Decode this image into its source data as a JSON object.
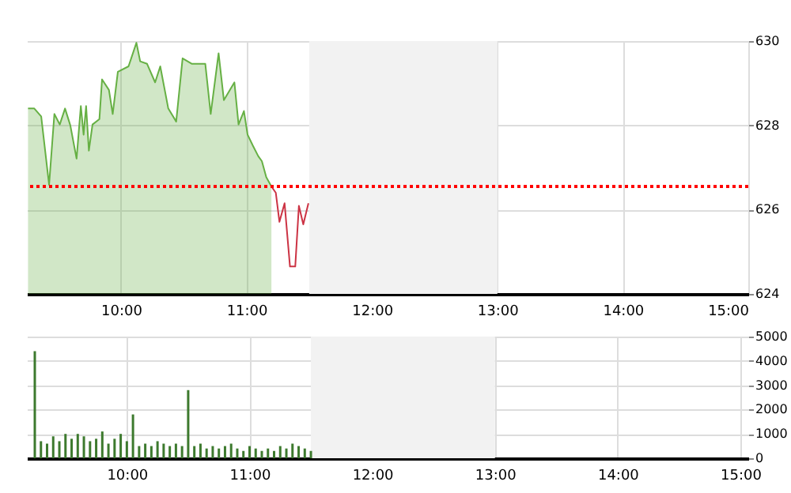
{
  "chart_data": [
    {
      "type": "area",
      "xlim": [
        9.25,
        15
      ],
      "ylim": [
        624,
        630
      ],
      "yticks": [
        624,
        626,
        628,
        630
      ],
      "xticks": [
        {
          "value": 10,
          "label": "10:00"
        },
        {
          "value": 11,
          "label": "11:00"
        },
        {
          "value": 12,
          "label": "12:00"
        },
        {
          "value": 13,
          "label": "13:00"
        },
        {
          "value": 14,
          "label": "14:00"
        },
        {
          "value": 15,
          "label": "15:00"
        }
      ],
      "grid": true,
      "series": [
        {
          "type": "area",
          "color": "#66b044",
          "x": [
            9.259,
            9.309,
            9.364,
            9.427,
            9.469,
            9.512,
            9.554,
            9.596,
            9.646,
            9.68,
            9.702,
            9.722,
            9.744,
            9.773,
            9.828,
            9.849,
            9.904,
            9.934,
            9.975,
            10.06,
            10.123,
            10.153,
            10.208,
            10.272,
            10.313,
            10.377,
            10.44,
            10.491,
            10.566,
            10.672,
            10.715,
            10.778,
            10.82,
            10.904,
            10.937,
            10.98,
            11.009,
            11.051,
            11.094,
            11.123,
            11.158,
            11.199
          ],
          "values": [
            628.4,
            628.4,
            628.21,
            626.59,
            628.27,
            628.02,
            628.4,
            628.0,
            627.21,
            628.46,
            627.78,
            628.46,
            627.4,
            628.02,
            628.15,
            629.09,
            628.84,
            628.27,
            629.27,
            629.4,
            629.96,
            629.52,
            629.46,
            629.02,
            629.4,
            628.4,
            628.09,
            629.59,
            629.46,
            629.46,
            628.27,
            629.71,
            628.6,
            629.02,
            628.02,
            628.34,
            627.78,
            627.52,
            627.27,
            627.15,
            626.77,
            626.55
          ]
        },
        {
          "type": "line",
          "color": "#cc3344",
          "x": [
            11.199,
            11.234,
            11.263,
            11.304,
            11.347,
            11.389,
            11.418,
            11.453,
            11.494
          ],
          "values": [
            626.55,
            626.4,
            625.71,
            626.15,
            624.65,
            624.65,
            626.09,
            625.65,
            626.15
          ]
        }
      ],
      "ref_lines": [
        {
          "axis": "y",
          "value": 626.55,
          "color": "#ff0000",
          "line_style": "dotted"
        }
      ],
      "bands": [
        {
          "axis": "x",
          "from": 11.5,
          "to": 13,
          "color": "#f2f2f2"
        }
      ]
    },
    {
      "type": "bar",
      "xlim": [
        9.25,
        15
      ],
      "ylim": [
        0,
        5000
      ],
      "yticks": [
        0,
        1000,
        2000,
        3000,
        4000,
        5000
      ],
      "xticks": [
        {
          "value": 10,
          "label": "10:00"
        },
        {
          "value": 11,
          "label": "11:00"
        },
        {
          "value": 12,
          "label": "12:00"
        },
        {
          "value": 13,
          "label": "13:00"
        },
        {
          "value": 14,
          "label": "14:00"
        },
        {
          "value": 15,
          "label": "15:00"
        }
      ],
      "grid": true,
      "color": "#3d7a2e",
      "x": [
        9.25,
        9.3,
        9.35,
        9.4,
        9.45,
        9.5,
        9.55,
        9.6,
        9.65,
        9.7,
        9.75,
        9.8,
        9.85,
        9.9,
        9.95,
        10.0,
        10.05,
        10.1,
        10.15,
        10.2,
        10.25,
        10.3,
        10.35,
        10.4,
        10.45,
        10.5,
        10.55,
        10.6,
        10.65,
        10.7,
        10.75,
        10.8,
        10.85,
        10.9,
        10.95,
        11.0,
        11.05,
        11.1,
        11.15,
        11.2,
        11.25,
        11.3,
        11.35,
        11.4,
        11.45,
        11.5
      ],
      "values": [
        4400,
        700,
        600,
        900,
        700,
        1000,
        800,
        1000,
        900,
        700,
        800,
        1100,
        600,
        800,
        1000,
        700,
        1800,
        500,
        600,
        500,
        700,
        600,
        500,
        600,
        500,
        2800,
        500,
        600,
        400,
        500,
        400,
        500,
        600,
        400,
        300,
        500,
        400,
        300,
        400,
        300,
        500,
        400,
        600,
        500,
        400,
        300
      ],
      "bands": [
        {
          "axis": "x",
          "from": 11.5,
          "to": 13,
          "color": "#f2f2f2"
        }
      ]
    }
  ]
}
